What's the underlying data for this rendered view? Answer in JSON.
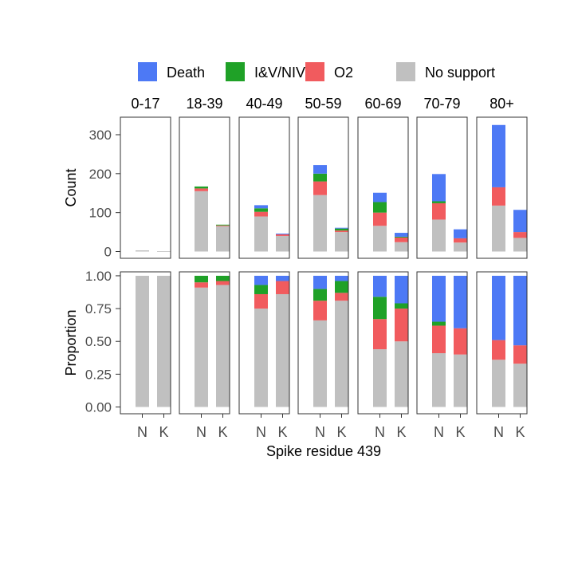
{
  "chart_data": {
    "type": "bar",
    "stacked": true,
    "facet_labels": [
      "0-17",
      "18-39",
      "40-49",
      "50-59",
      "60-69",
      "70-79",
      "80+"
    ],
    "categories": [
      "N",
      "K"
    ],
    "xlabel": "Spike residue 439",
    "legend": {
      "position": "top",
      "items": [
        {
          "name": "Death",
          "color": "#4D79F5"
        },
        {
          "name": "I&V/NIV",
          "color": "#1FA127"
        },
        {
          "name": "O2",
          "color": "#F15B5E"
        },
        {
          "name": "No support",
          "color": "#C0C0C0"
        }
      ]
    },
    "stack_order": [
      "No support",
      "O2",
      "I&V/NIV",
      "Death"
    ],
    "panels": [
      {
        "ylabel": "Count",
        "ylim": [
          0,
          345
        ],
        "yticks": [
          0,
          100,
          200,
          300
        ],
        "ytick_labels": [
          "0",
          "100",
          "200",
          "300"
        ],
        "facets": [
          {
            "N": {
              "No support": 3,
              "O2": 0,
              "I&V/NIV": 0,
              "Death": 0
            },
            "K": {
              "No support": 1,
              "O2": 0,
              "I&V/NIV": 0,
              "Death": 0
            }
          },
          {
            "N": {
              "No support": 155,
              "O2": 7,
              "I&V/NIV": 5,
              "Death": 0
            },
            "K": {
              "No support": 65,
              "O2": 2,
              "I&V/NIV": 2,
              "Death": 0
            }
          },
          {
            "N": {
              "No support": 90,
              "O2": 12,
              "I&V/NIV": 9,
              "Death": 8
            },
            "K": {
              "No support": 40,
              "O2": 4,
              "I&V/NIV": 0,
              "Death": 2
            }
          },
          {
            "N": {
              "No support": 145,
              "O2": 35,
              "I&V/NIV": 20,
              "Death": 22
            },
            "K": {
              "No support": 50,
              "O2": 4,
              "I&V/NIV": 5,
              "Death": 2
            }
          },
          {
            "N": {
              "No support": 66,
              "O2": 34,
              "I&V/NIV": 27,
              "Death": 24
            },
            "K": {
              "No support": 24,
              "O2": 12,
              "I&V/NIV": 2,
              "Death": 10
            }
          },
          {
            "N": {
              "No support": 82,
              "O2": 42,
              "I&V/NIV": 5,
              "Death": 70
            },
            "K": {
              "No support": 23,
              "O2": 11,
              "I&V/NIV": 0,
              "Death": 23
            }
          },
          {
            "N": {
              "No support": 118,
              "O2": 47,
              "I&V/NIV": 0,
              "Death": 160
            },
            "K": {
              "No support": 35,
              "O2": 15,
              "I&V/NIV": 0,
              "Death": 57
            }
          }
        ]
      },
      {
        "ylabel": "Proportion",
        "ylim": [
          0,
          1.03
        ],
        "yticks": [
          0,
          0.25,
          0.5,
          0.75,
          1.0
        ],
        "ytick_labels": [
          "0.00",
          "0.25",
          "0.50",
          "0.75",
          "1.00"
        ],
        "facets": [
          {
            "N": {
              "No support": 1.0,
              "O2": 0,
              "I&V/NIV": 0,
              "Death": 0
            },
            "K": {
              "No support": 1.0,
              "O2": 0,
              "I&V/NIV": 0,
              "Death": 0
            }
          },
          {
            "N": {
              "No support": 0.91,
              "O2": 0.04,
              "I&V/NIV": 0.05,
              "Death": 0
            },
            "K": {
              "No support": 0.93,
              "O2": 0.03,
              "I&V/NIV": 0.04,
              "Death": 0
            }
          },
          {
            "N": {
              "No support": 0.75,
              "O2": 0.11,
              "I&V/NIV": 0.07,
              "Death": 0.07
            },
            "K": {
              "No support": 0.86,
              "O2": 0.1,
              "I&V/NIV": 0,
              "Death": 0.04
            }
          },
          {
            "N": {
              "No support": 0.66,
              "O2": 0.15,
              "I&V/NIV": 0.09,
              "Death": 0.1
            },
            "K": {
              "No support": 0.81,
              "O2": 0.06,
              "I&V/NIV": 0.09,
              "Death": 0.04
            }
          },
          {
            "N": {
              "No support": 0.44,
              "O2": 0.23,
              "I&V/NIV": 0.17,
              "Death": 0.16
            },
            "K": {
              "No support": 0.5,
              "O2": 0.25,
              "I&V/NIV": 0.04,
              "Death": 0.21
            }
          },
          {
            "N": {
              "No support": 0.41,
              "O2": 0.21,
              "I&V/NIV": 0.03,
              "Death": 0.35
            },
            "K": {
              "No support": 0.4,
              "O2": 0.2,
              "I&V/NIV": 0,
              "Death": 0.4
            }
          },
          {
            "N": {
              "No support": 0.36,
              "O2": 0.15,
              "I&V/NIV": 0,
              "Death": 0.49
            },
            "K": {
              "No support": 0.33,
              "O2": 0.14,
              "I&V/NIV": 0,
              "Death": 0.53
            }
          }
        ]
      }
    ]
  }
}
